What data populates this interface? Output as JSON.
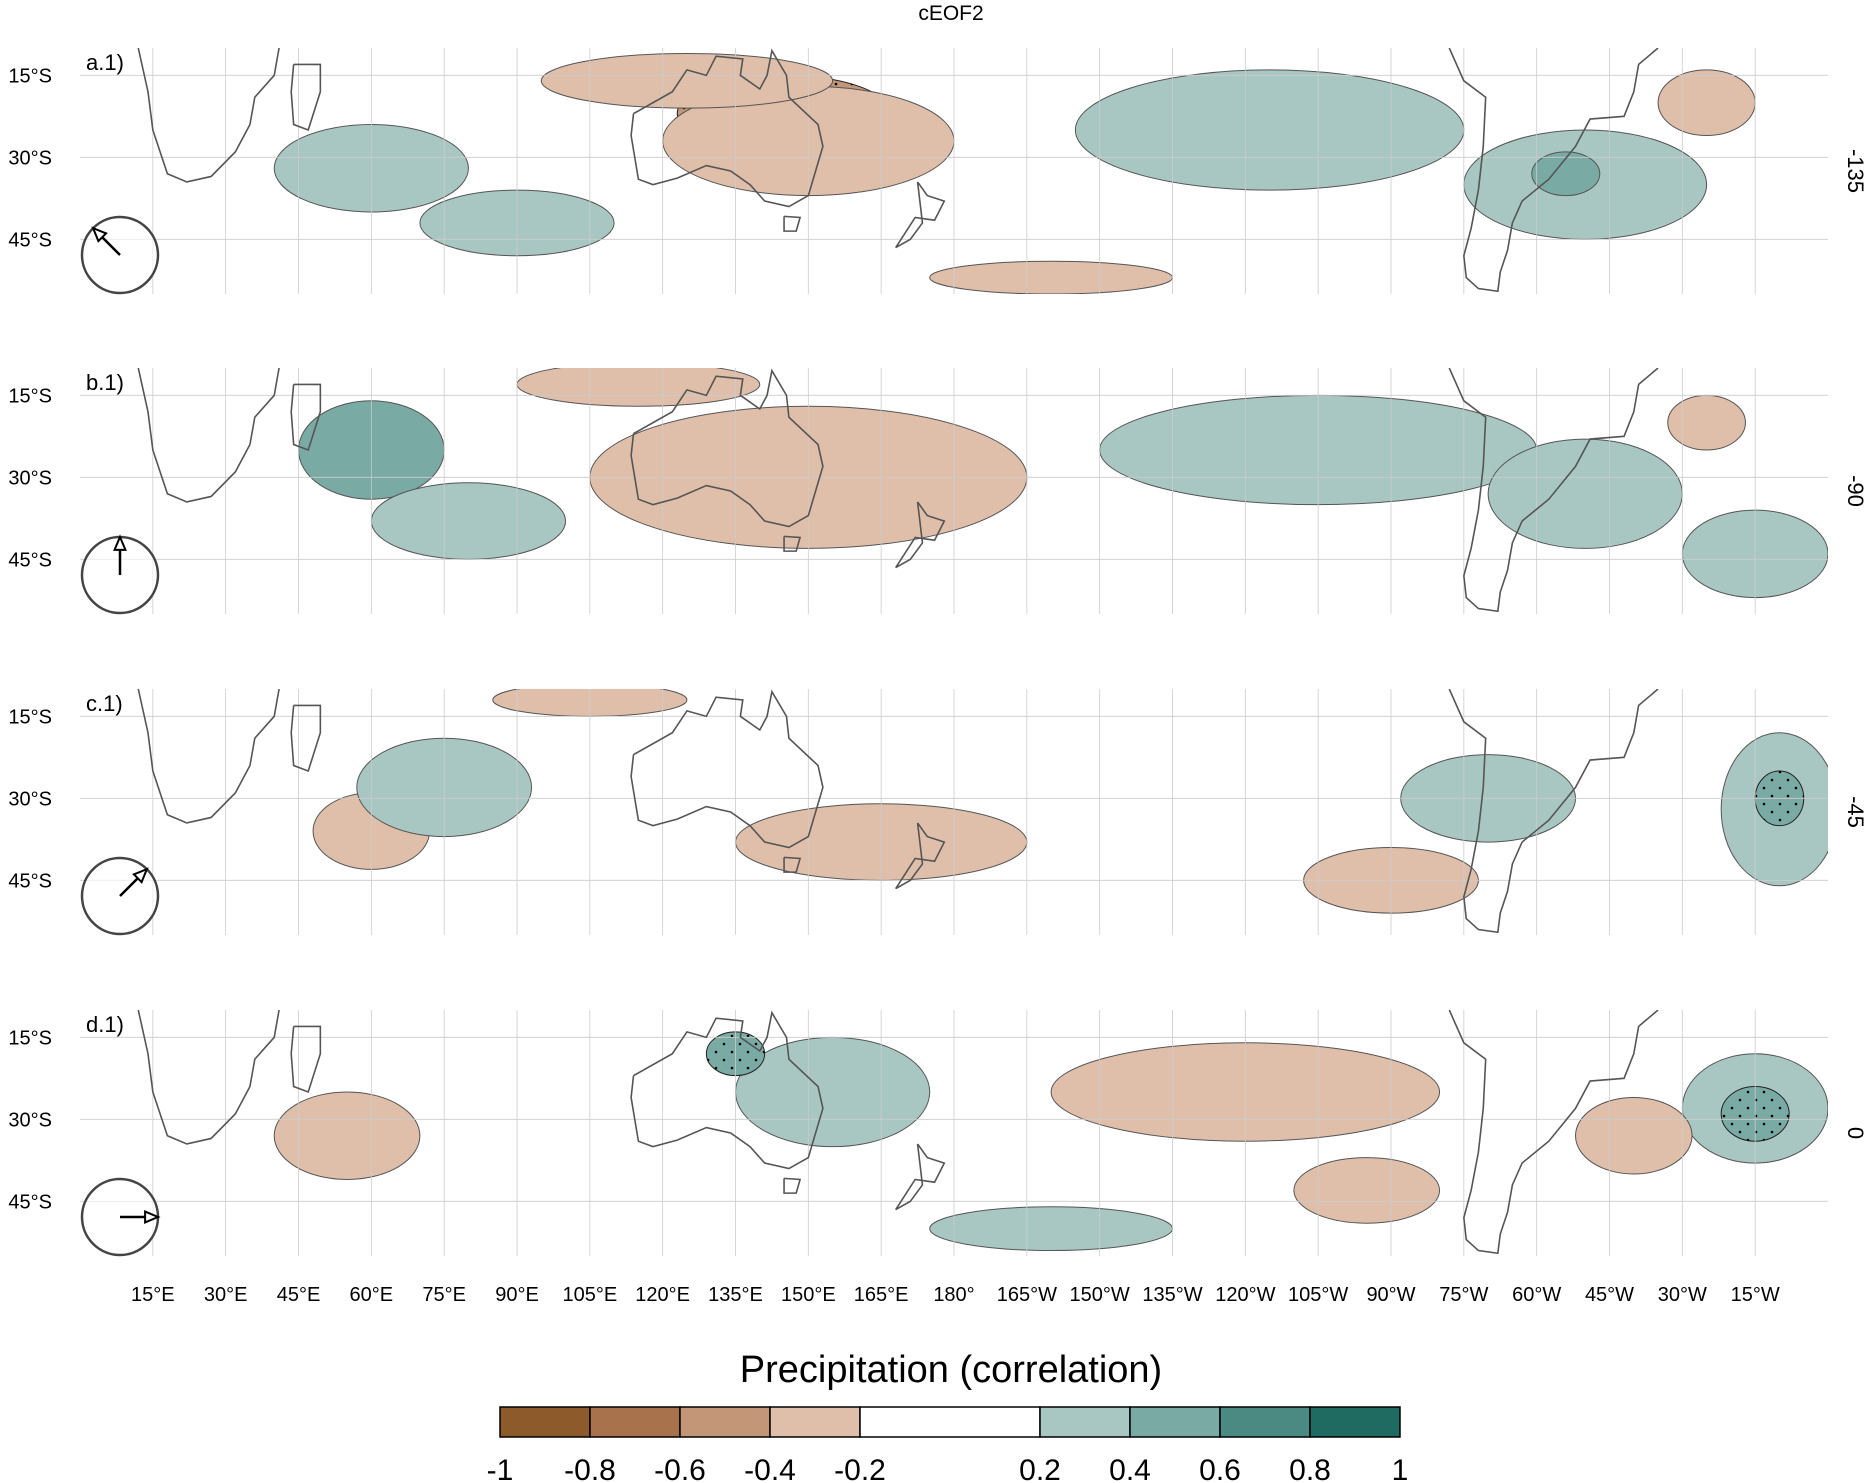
{
  "chart_data": {
    "type": "heatmap",
    "title": "cEOF2",
    "colorbar": {
      "title": "Precipitation (correlation)",
      "levels": [
        -1,
        -0.8,
        -0.6,
        -0.4,
        -0.2,
        0.2,
        0.4,
        0.6,
        0.8,
        1
      ],
      "tick_labels": [
        "-1",
        "-0.8",
        "-0.6",
        "-0.4",
        "-0.2",
        "0.2",
        "0.4",
        "0.6",
        "0.8",
        "1"
      ],
      "colors": [
        "#8c5a2b",
        "#a8734c",
        "#c39677",
        "#dfbfaa",
        "#ffffff",
        "#a9c7c2",
        "#7aaaa4",
        "#4a8a82",
        "#1f6b62"
      ]
    },
    "x_ticks": [
      "15°E",
      "30°E",
      "45°E",
      "60°E",
      "75°E",
      "90°E",
      "105°E",
      "120°E",
      "135°E",
      "150°E",
      "165°E",
      "180°",
      "165°W",
      "150°W",
      "135°W",
      "120°W",
      "105°W",
      "90°W",
      "75°W",
      "60°W",
      "45°W",
      "30°W",
      "15°W"
    ],
    "y_ticks": [
      "15°S",
      "30°S",
      "45°S"
    ],
    "lon_range": [
      0,
      360
    ],
    "lat_range": [
      -55,
      -10
    ],
    "panels": [
      {
        "label": "a.1)",
        "phase": "-135",
        "arrow_angle_deg": -135,
        "blobs": [
          {
            "lon": 145,
            "lat": -22,
            "rx": 22,
            "ry": 7,
            "value": -0.55,
            "sig": true
          },
          {
            "lon": 150,
            "lat": -27,
            "rx": 30,
            "ry": 10,
            "value": -0.3
          },
          {
            "lon": 125,
            "lat": -16,
            "rx": 30,
            "ry": 5,
            "value": -0.25
          },
          {
            "lon": 250,
            "lat": -26,
            "rx": 20,
            "ry": 7,
            "value": 0.55,
            "sig": true
          },
          {
            "lon": 245,
            "lat": -25,
            "rx": 40,
            "ry": 11,
            "value": 0.3
          },
          {
            "lon": 310,
            "lat": -35,
            "rx": 25,
            "ry": 10,
            "value": 0.3
          },
          {
            "lon": 306,
            "lat": -33,
            "rx": 7,
            "ry": 4,
            "value": 0.5
          },
          {
            "lon": 335,
            "lat": -20,
            "rx": 10,
            "ry": 6,
            "value": -0.4
          },
          {
            "lon": 60,
            "lat": -32,
            "rx": 20,
            "ry": 8,
            "value": 0.3
          },
          {
            "lon": 90,
            "lat": -42,
            "rx": 20,
            "ry": 6,
            "value": 0.25
          },
          {
            "lon": 200,
            "lat": -52,
            "rx": 25,
            "ry": 3,
            "value": -0.25
          }
        ]
      },
      {
        "label": "b.1)",
        "phase": "-90",
        "arrow_angle_deg": -90,
        "blobs": [
          {
            "lon": 150,
            "lat": -32,
            "rx": 25,
            "ry": 9,
            "value": -0.55,
            "sig": true
          },
          {
            "lon": 150,
            "lat": -30,
            "rx": 45,
            "ry": 13,
            "value": -0.3
          },
          {
            "lon": 115,
            "lat": -13,
            "rx": 25,
            "ry": 4,
            "value": -0.3
          },
          {
            "lon": 255,
            "lat": -24,
            "rx": 25,
            "ry": 6,
            "value": 0.55,
            "sig": true
          },
          {
            "lon": 255,
            "lat": -25,
            "rx": 45,
            "ry": 10,
            "value": 0.3
          },
          {
            "lon": 60,
            "lat": -25,
            "rx": 15,
            "ry": 9,
            "value": 0.4
          },
          {
            "lon": 80,
            "lat": -38,
            "rx": 20,
            "ry": 7,
            "value": 0.25
          },
          {
            "lon": 310,
            "lat": -33,
            "rx": 20,
            "ry": 10,
            "value": 0.3
          },
          {
            "lon": 335,
            "lat": -20,
            "rx": 8,
            "ry": 5,
            "value": -0.4
          },
          {
            "lon": 345,
            "lat": -44,
            "rx": 15,
            "ry": 8,
            "value": 0.3
          }
        ]
      },
      {
        "label": "c.1)",
        "phase": "-45",
        "arrow_angle_deg": -45,
        "blobs": [
          {
            "lon": 165,
            "lat": -38,
            "rx": 30,
            "ry": 7,
            "value": -0.3
          },
          {
            "lon": 60,
            "lat": -36,
            "rx": 12,
            "ry": 7,
            "value": -0.3
          },
          {
            "lon": 75,
            "lat": -28,
            "rx": 18,
            "ry": 9,
            "value": 0.3
          },
          {
            "lon": 290,
            "lat": -30,
            "rx": 18,
            "ry": 8,
            "value": 0.35
          },
          {
            "lon": 350,
            "lat": -32,
            "rx": 12,
            "ry": 14,
            "value": 0.35
          },
          {
            "lon": 350,
            "lat": -30,
            "rx": 5,
            "ry": 5,
            "value": 0.55,
            "sig": true
          },
          {
            "lon": 270,
            "lat": -45,
            "rx": 18,
            "ry": 6,
            "value": -0.3
          },
          {
            "lon": 105,
            "lat": -12,
            "rx": 20,
            "ry": 3,
            "value": -0.25
          }
        ]
      },
      {
        "label": "d.1)",
        "phase": "0",
        "arrow_angle_deg": 0,
        "blobs": [
          {
            "lon": 155,
            "lat": -25,
            "rx": 20,
            "ry": 10,
            "value": 0.3
          },
          {
            "lon": 135,
            "lat": -18,
            "rx": 6,
            "ry": 4,
            "value": 0.55,
            "sig": true
          },
          {
            "lon": 240,
            "lat": -25,
            "rx": 40,
            "ry": 9,
            "value": -0.3
          },
          {
            "lon": 345,
            "lat": -28,
            "rx": 15,
            "ry": 10,
            "value": 0.35
          },
          {
            "lon": 345,
            "lat": -29,
            "rx": 7,
            "ry": 5,
            "value": 0.55,
            "sig": true
          },
          {
            "lon": 55,
            "lat": -33,
            "rx": 15,
            "ry": 8,
            "value": -0.3
          },
          {
            "lon": 265,
            "lat": -43,
            "rx": 15,
            "ry": 6,
            "value": -0.3
          },
          {
            "lon": 320,
            "lat": -33,
            "rx": 12,
            "ry": 7,
            "value": -0.3
          },
          {
            "lon": 200,
            "lat": -50,
            "rx": 25,
            "ry": 4,
            "value": 0.25
          }
        ]
      }
    ]
  }
}
